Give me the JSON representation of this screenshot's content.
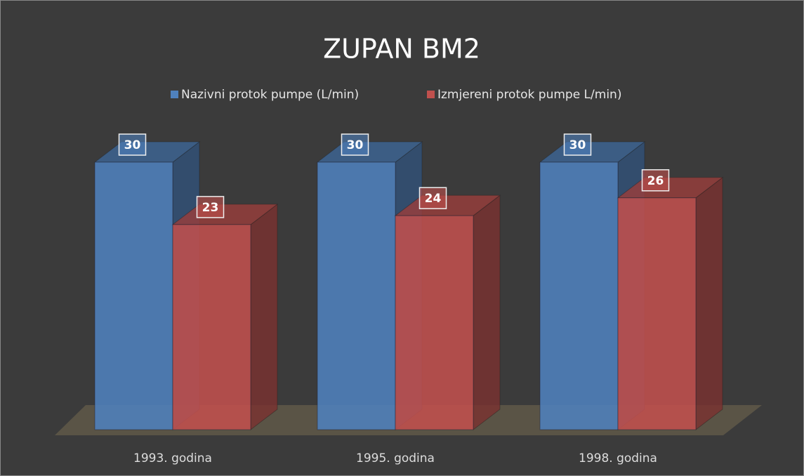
{
  "chart_data": {
    "type": "bar3d",
    "title": "ZUPAN BM2",
    "categories": [
      "1993. godina",
      "1995. godina",
      "1998. godina"
    ],
    "series": [
      {
        "name": "Nazivni protok pumpe (L/min)",
        "color": "#4f81bd",
        "values": [
          30,
          30,
          30
        ]
      },
      {
        "name": "Izmjereni protok pumpe L/min)",
        "color": "#c0504d",
        "values": [
          23,
          24,
          26
        ]
      }
    ],
    "legend": "top"
  }
}
